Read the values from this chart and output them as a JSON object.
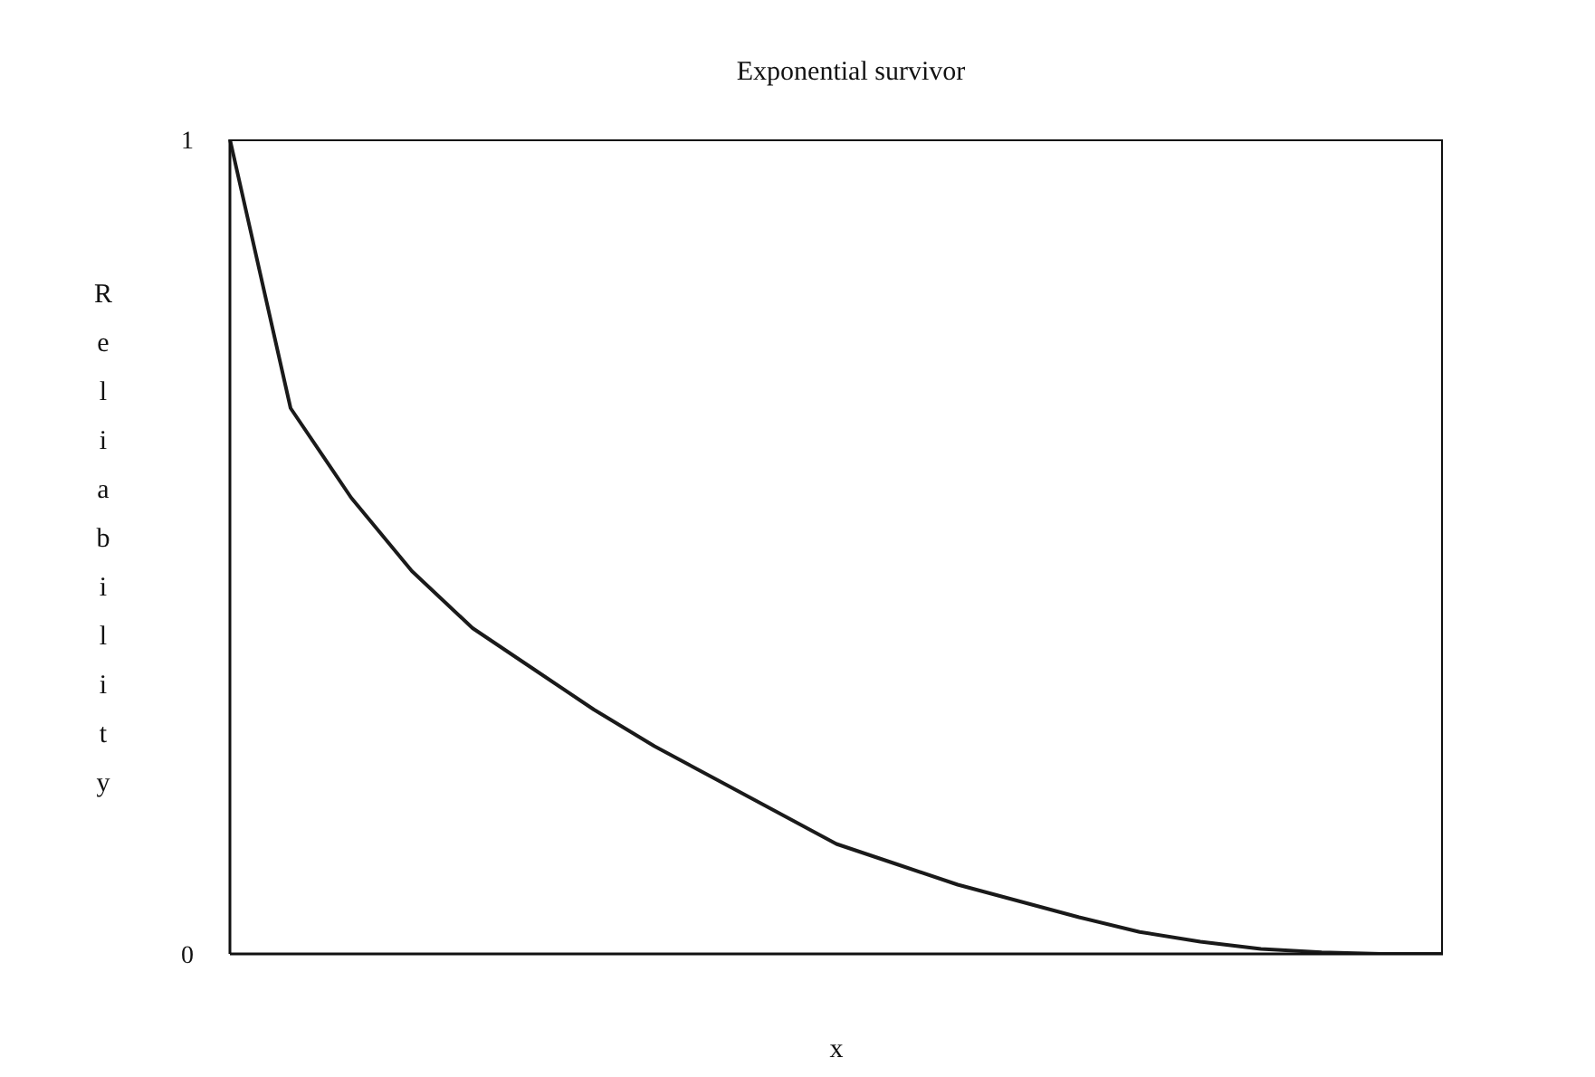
{
  "chart_data": {
    "type": "line",
    "title": "Exponential survivor",
    "xlabel": "x",
    "ylabel": "Reliability",
    "categories": [
      null,
      null,
      null,
      null,
      null,
      null,
      null,
      null,
      null,
      null,
      null,
      null,
      null,
      null,
      null,
      null,
      null,
      null,
      null,
      null,
      null
    ],
    "series": [
      {
        "color": "#1a1a1a",
        "values": [
          1,
          0.67,
          0.56,
          0.47,
          0.4,
          0.35,
          0.3,
          0.255,
          0.215,
          0.175,
          0.135,
          0.11,
          0.085,
          0.065,
          0.045,
          0.027,
          0.015,
          0.006,
          0.002,
          0,
          0
        ]
      }
    ],
    "ylim": [
      0,
      1
    ],
    "yticks": [
      0,
      1
    ],
    "tick_labels": "y",
    "grid": false,
    "legend": false,
    "marker": "none",
    "line_style": "solid"
  }
}
